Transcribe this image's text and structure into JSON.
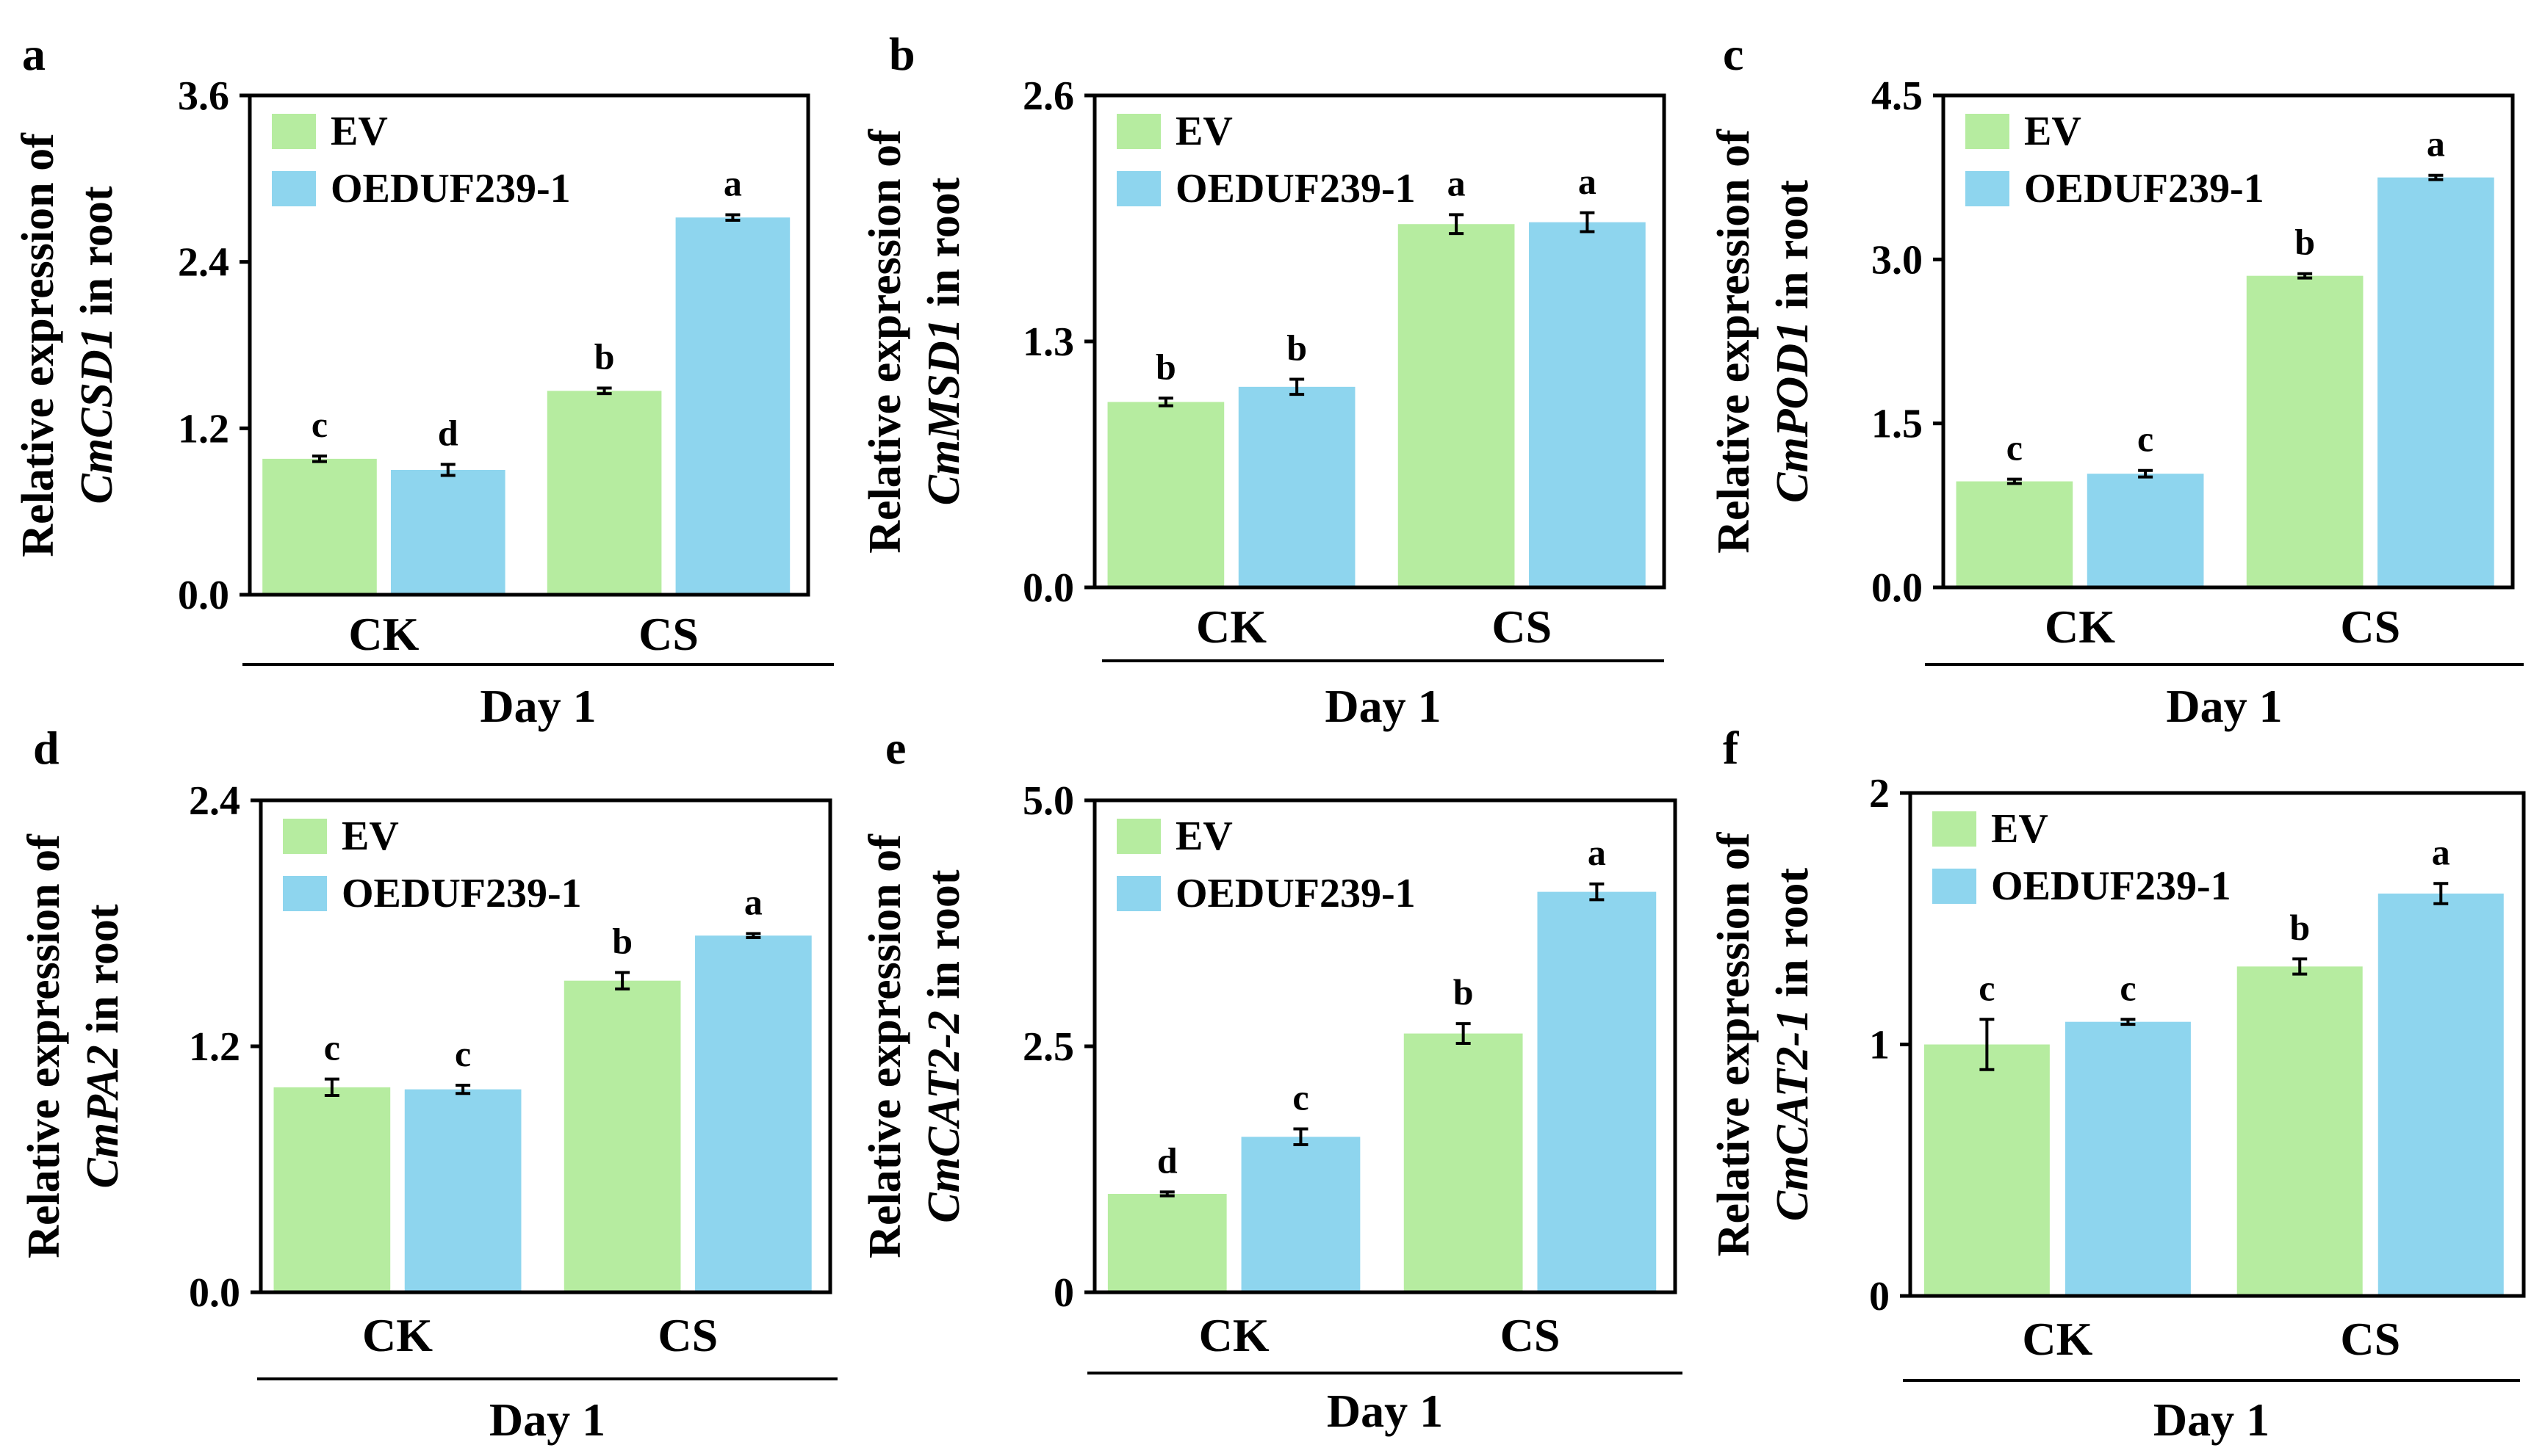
{
  "colors": {
    "EV": "#b6eca0",
    "OEDUF239-1": "#8ed5ee",
    "axis": "#000000"
  },
  "chart_data": [
    {
      "panel": "a",
      "type": "bar",
      "ylabel_prefix": "Relative expression of",
      "gene": "CmCSD1",
      "ylabel_suffix": " in root",
      "categories": [
        "CK",
        "CS"
      ],
      "group_label": "Day 1",
      "ylim": [
        0,
        3.6
      ],
      "yticks": [
        "0.0",
        "1.2",
        "2.4",
        "3.6"
      ],
      "series": [
        {
          "name": "EV",
          "values": [
            0.98,
            1.47
          ],
          "errors": [
            0.02,
            0.02
          ],
          "letters": [
            "c",
            "b"
          ]
        },
        {
          "name": "OEDUF239-1",
          "values": [
            0.9,
            2.72
          ],
          "errors": [
            0.04,
            0.02
          ],
          "letters": [
            "d",
            "a"
          ]
        }
      ]
    },
    {
      "panel": "b",
      "type": "bar",
      "ylabel_prefix": "Relative expression of",
      "gene": "CmMSD1",
      "ylabel_suffix": " in root",
      "categories": [
        "CK",
        "CS"
      ],
      "group_label": "Day 1",
      "ylim": [
        0,
        2.6
      ],
      "yticks": [
        "0.0",
        "1.3",
        "2.6"
      ],
      "series": [
        {
          "name": "EV",
          "values": [
            0.98,
            1.92
          ],
          "errors": [
            0.02,
            0.05
          ],
          "letters": [
            "b",
            "a"
          ]
        },
        {
          "name": "OEDUF239-1",
          "values": [
            1.06,
            1.93
          ],
          "errors": [
            0.04,
            0.05
          ],
          "letters": [
            "b",
            "a"
          ]
        }
      ]
    },
    {
      "panel": "c",
      "type": "bar",
      "ylabel_prefix": "Relative expression of",
      "gene": "CmPOD1",
      "ylabel_suffix": " in root",
      "categories": [
        "CK",
        "CS"
      ],
      "group_label": "Day 1",
      "ylim": [
        0,
        4.5
      ],
      "yticks": [
        "0.0",
        "1.5",
        "3.0",
        "4.5"
      ],
      "series": [
        {
          "name": "EV",
          "values": [
            0.97,
            2.85
          ],
          "errors": [
            0.02,
            0.02
          ],
          "letters": [
            "c",
            "b"
          ]
        },
        {
          "name": "OEDUF239-1",
          "values": [
            1.04,
            3.75
          ],
          "errors": [
            0.03,
            0.02
          ],
          "letters": [
            "c",
            "a"
          ]
        }
      ]
    },
    {
      "panel": "d",
      "type": "bar",
      "ylabel_prefix": "Relative expression of",
      "gene": "CmPA2",
      "ylabel_suffix": " in root",
      "categories": [
        "CK",
        "CS"
      ],
      "group_label": "Day 1",
      "ylim": [
        0,
        2.4
      ],
      "yticks": [
        "0.0",
        "1.2",
        "2.4"
      ],
      "series": [
        {
          "name": "EV",
          "values": [
            1.0,
            1.52
          ],
          "errors": [
            0.04,
            0.04
          ],
          "letters": [
            "c",
            "b"
          ]
        },
        {
          "name": "OEDUF239-1",
          "values": [
            0.99,
            1.74
          ],
          "errors": [
            0.02,
            0.01
          ],
          "letters": [
            "c",
            "a"
          ]
        }
      ]
    },
    {
      "panel": "e",
      "type": "bar",
      "ylabel_prefix": "Relative expression of",
      "gene": "CmCAT2-2",
      "ylabel_suffix": " in root",
      "categories": [
        "CK",
        "CS"
      ],
      "group_label": "Day 1",
      "ylim": [
        0,
        5.0
      ],
      "yticks": [
        "0",
        "2.5",
        "5.0"
      ],
      "series": [
        {
          "name": "EV",
          "values": [
            1.0,
            2.63
          ],
          "errors": [
            0.02,
            0.1
          ],
          "letters": [
            "d",
            "b"
          ]
        },
        {
          "name": "OEDUF239-1",
          "values": [
            1.58,
            4.07
          ],
          "errors": [
            0.08,
            0.08
          ],
          "letters": [
            "c",
            "a"
          ]
        }
      ]
    },
    {
      "panel": "f",
      "type": "bar",
      "ylabel_prefix": "Relative expression of",
      "gene": "CmCAT2-1",
      "ylabel_suffix": " in root",
      "categories": [
        "CK",
        "CS"
      ],
      "group_label": "Day 1",
      "ylim": [
        0,
        2
      ],
      "yticks": [
        "0",
        "1",
        "2"
      ],
      "series": [
        {
          "name": "EV",
          "values": [
            1.0,
            1.31
          ],
          "errors": [
            0.1,
            0.03
          ],
          "letters": [
            "c",
            "b"
          ]
        },
        {
          "name": "OEDUF239-1",
          "values": [
            1.09,
            1.6
          ],
          "errors": [
            0.01,
            0.04
          ],
          "letters": [
            "c",
            "a"
          ]
        }
      ]
    }
  ]
}
